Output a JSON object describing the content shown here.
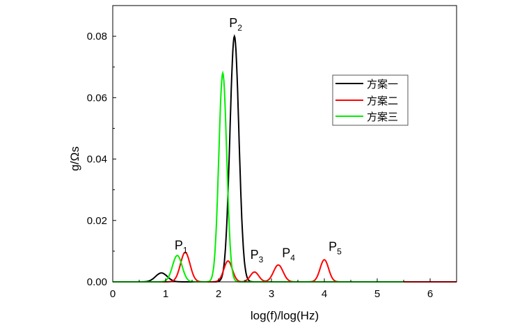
{
  "chart_data": {
    "type": "line",
    "xlabel": "log(f)/log(Hz)",
    "ylabel": "g/Ωs",
    "xlim": [
      0,
      6.5
    ],
    "ylim": [
      0,
      0.09
    ],
    "xticks": [
      "0",
      "1",
      "2",
      "3",
      "4",
      "5",
      "6"
    ],
    "yticks": [
      "0.00",
      "0.02",
      "0.04",
      "0.06",
      "0.08"
    ],
    "grid": false,
    "legend_position": "top-right",
    "series": [
      {
        "name": "方案一",
        "color": "#000000",
        "x_range": [
          0,
          5.5
        ],
        "peaks": [
          {
            "x": 0.92,
            "y": 0.0029,
            "sigma": 0.11
          },
          {
            "x": 2.3,
            "y": 0.08,
            "sigma": 0.085
          }
        ]
      },
      {
        "name": "方案二",
        "color": "#ff0000",
        "x_range": [
          0,
          6.5
        ],
        "peaks": [
          {
            "x": 1.37,
            "y": 0.0096,
            "sigma": 0.09
          },
          {
            "x": 2.18,
            "y": 0.0068,
            "sigma": 0.08
          },
          {
            "x": 2.68,
            "y": 0.0032,
            "sigma": 0.08
          },
          {
            "x": 3.13,
            "y": 0.0055,
            "sigma": 0.09
          },
          {
            "x": 4.0,
            "y": 0.0072,
            "sigma": 0.08
          }
        ]
      },
      {
        "name": "方案三",
        "color": "#00ee00",
        "x_range": [
          0,
          5.5
        ],
        "peaks": [
          {
            "x": 1.22,
            "y": 0.0086,
            "sigma": 0.09
          },
          {
            "x": 2.08,
            "y": 0.068,
            "sigma": 0.075
          }
        ]
      }
    ],
    "annotations": [
      {
        "label": "P",
        "sub": "1",
        "x": 1.17,
        "y": 0.0105
      },
      {
        "label": "P",
        "sub": "2",
        "x": 2.2,
        "y": 0.083
      },
      {
        "label": "P",
        "sub": "3",
        "x": 2.6,
        "y": 0.0075
      },
      {
        "label": "P",
        "sub": "4",
        "x": 3.2,
        "y": 0.008
      },
      {
        "label": "P",
        "sub": "5",
        "x": 4.08,
        "y": 0.0101
      }
    ]
  }
}
